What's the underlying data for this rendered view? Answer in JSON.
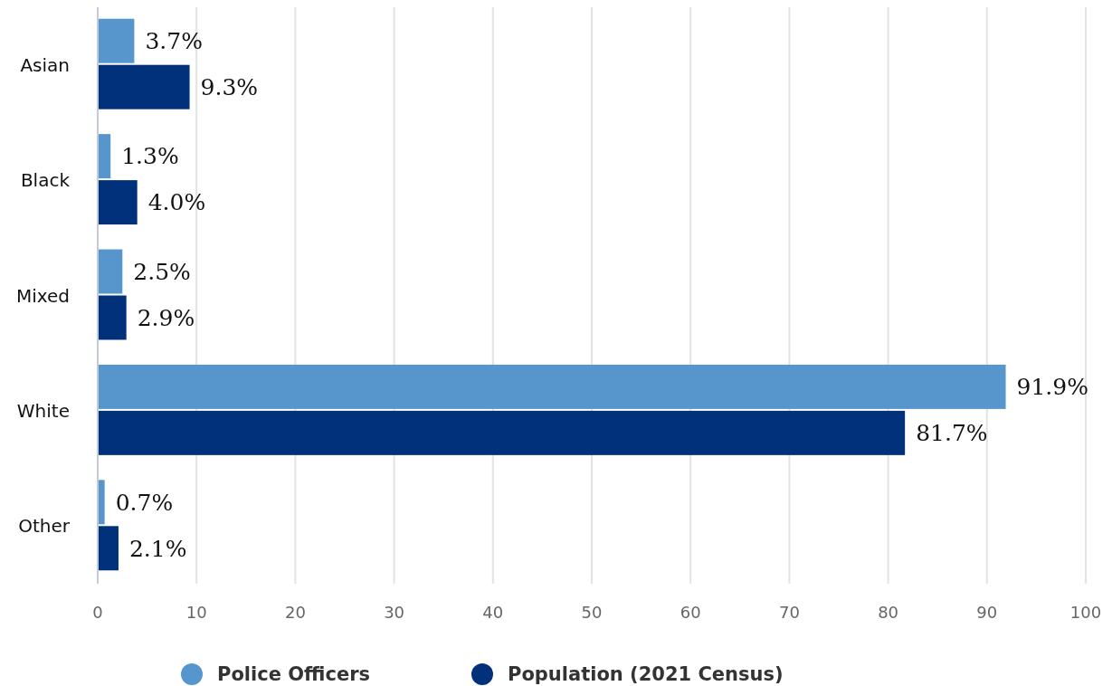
{
  "chart_data": {
    "type": "bar",
    "orientation": "horizontal",
    "categories": [
      "Asian",
      "Black",
      "Mixed",
      "White",
      "Other"
    ],
    "series": [
      {
        "name": "Police Officers",
        "color": "#5796cc",
        "values": [
          3.7,
          1.3,
          2.5,
          91.9,
          0.7
        ],
        "value_labels": [
          "3.7%",
          "1.3%",
          "2.5%",
          "91.9%",
          "0.7%"
        ]
      },
      {
        "name": "Population (2021 Census)",
        "color": "#00317a",
        "values": [
          9.3,
          4.0,
          2.9,
          81.7,
          2.1
        ],
        "value_labels": [
          "9.3%",
          "4.0%",
          "2.9%",
          "81.7%",
          "2.1%"
        ]
      }
    ],
    "xlim": [
      0,
      100
    ],
    "xticks": [
      0,
      10,
      20,
      30,
      40,
      50,
      60,
      70,
      80,
      90,
      100
    ],
    "grid": "x",
    "legend": "bottom"
  }
}
